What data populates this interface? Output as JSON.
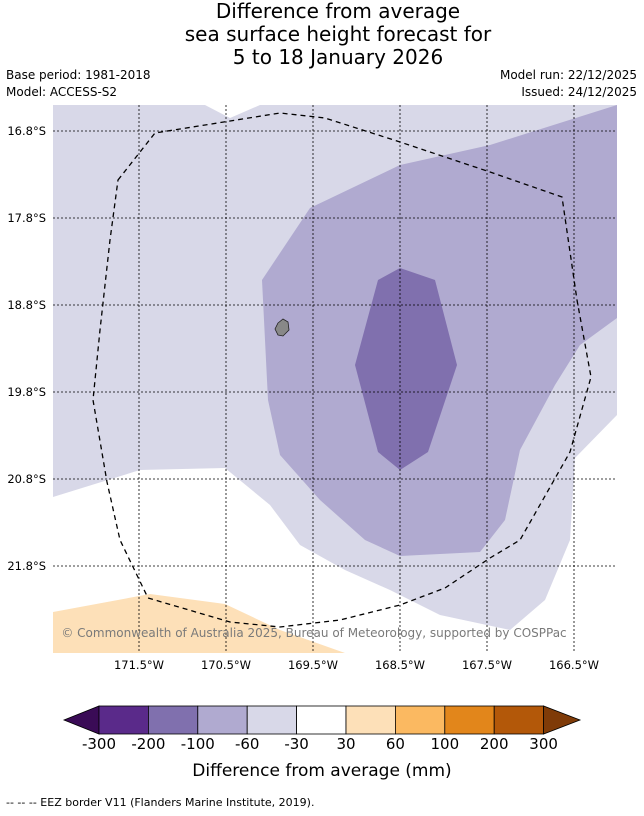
{
  "title": {
    "line1": "Difference from average",
    "line2": "sea surface height forecast for",
    "line3": "5 to 18 January 2026"
  },
  "meta": {
    "base_period": "Base period: 1981-2018",
    "model": "Model: ACCESS-S2",
    "model_run": "Model run: 22/12/2025",
    "issued": "Issued: 24/12/2025"
  },
  "map": {
    "latitudes": [
      "16.8°S",
      "17.8°S",
      "18.8°S",
      "19.8°S",
      "20.8°S",
      "21.8°S"
    ],
    "longitudes": [
      "171.5°W",
      "170.5°W",
      "169.5°W",
      "168.5°W",
      "167.5°W",
      "166.5°W"
    ],
    "copyright": "© Commonwealth of Australia 2025, Bureau of Meteorology, supported by COSPPac",
    "colors": {
      "ocean_-30": "#d8d8e8",
      "ocean_-60": "#b0aad0",
      "ocean_-100": "#8070ae",
      "positive_30": "#fde0b8",
      "neutral": "#ffffff",
      "land": "#888888"
    }
  },
  "colorbar": {
    "label": "Difference from average (mm)",
    "ticks": [
      "-300",
      "-200",
      "-100",
      "-60",
      "-30",
      "30",
      "60",
      "100",
      "200",
      "300"
    ],
    "colors": [
      "#5a2a8a",
      "#8070ae",
      "#b0aad0",
      "#d8d8e8",
      "#ffffff",
      "#fde0b8",
      "#fbb961",
      "#e2861b",
      "#b35809"
    ],
    "under_color": "#3a0b56",
    "over_color": "#7f3b08"
  },
  "footnote": "--  --  -- EEZ border V11 (Flanders Marine Institute, 2019)."
}
